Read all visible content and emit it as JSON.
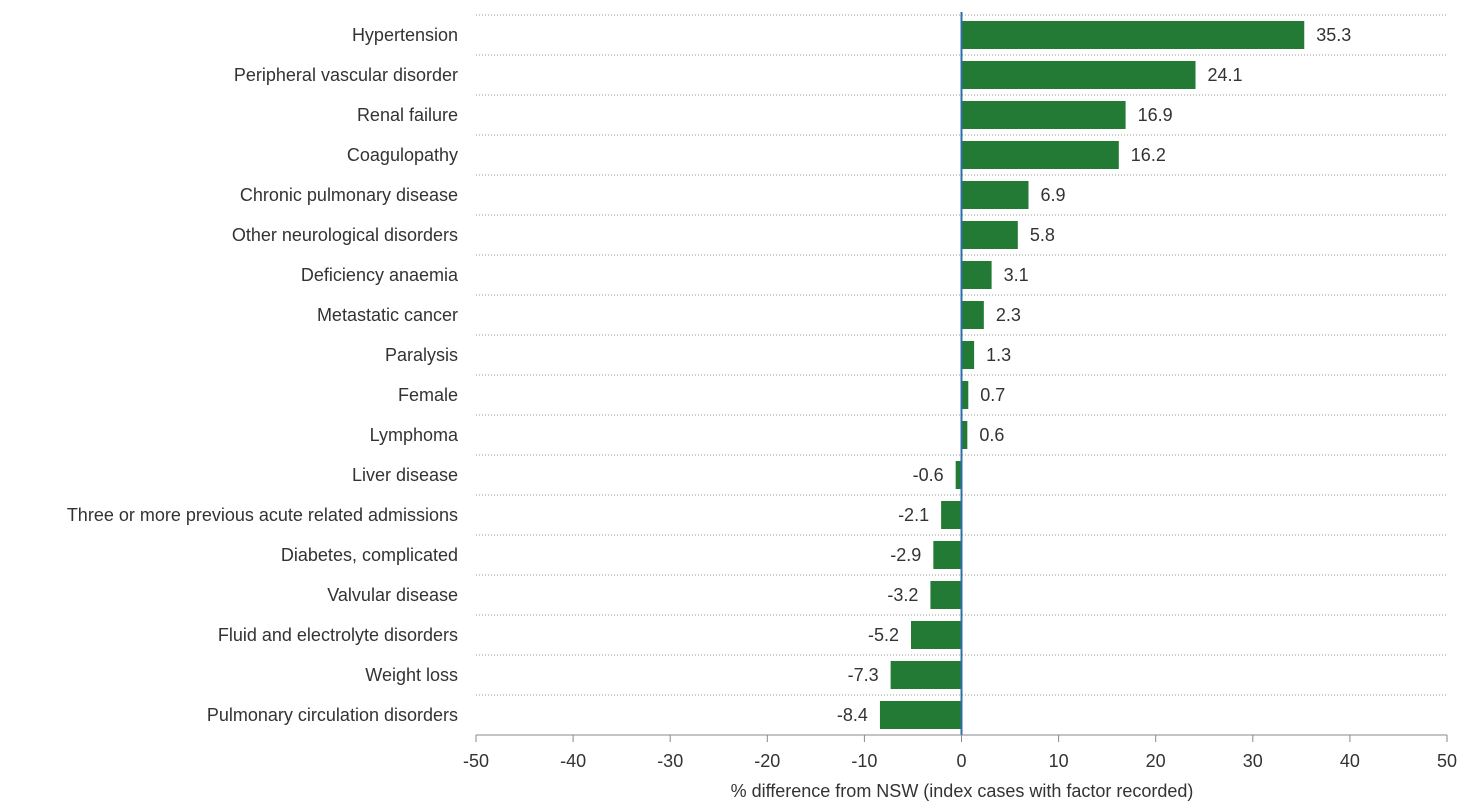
{
  "chart_data": {
    "type": "bar",
    "orientation": "horizontal",
    "title": "",
    "xlabel": "% difference from NSW (index cases with factor recorded)",
    "ylabel": "",
    "xlim": [
      -50,
      50
    ],
    "xticks": [
      -50,
      -40,
      -30,
      -20,
      -10,
      0,
      10,
      20,
      30,
      40,
      50
    ],
    "grid": "horizontal dotted lines between categories",
    "legend": "none",
    "categories": [
      "Hypertension",
      "Peripheral vascular disorder",
      "Renal failure",
      "Coagulopathy",
      "Chronic pulmonary disease",
      "Other neurological disorders",
      "Deficiency anaemia",
      "Metastatic cancer",
      "Paralysis",
      "Female",
      "Lymphoma",
      "Liver disease",
      "Three or more previous acute related admissions",
      "Diabetes, complicated",
      "Valvular disease",
      "Fluid and electrolyte disorders",
      "Weight loss",
      "Pulmonary circulation disorders"
    ],
    "values": [
      35.3,
      24.1,
      16.9,
      16.2,
      6.9,
      5.8,
      3.1,
      2.3,
      1.3,
      0.7,
      0.6,
      -0.6,
      -2.1,
      -2.9,
      -3.2,
      -5.2,
      -7.3,
      -8.4
    ],
    "value_labels": [
      "35.3",
      "24.1",
      "16.9",
      "16.2",
      "6.9",
      "5.8",
      "3.1",
      "2.3",
      "1.3",
      "0.7",
      "0.6",
      "-0.6",
      "-2.1",
      "-2.9",
      "-3.2",
      "-5.2",
      "-7.3",
      "-8.4"
    ],
    "colors": {
      "bar": "#237a34",
      "zero_line": "#2f6fa8",
      "grid": "#9a9a9a",
      "axis": "#888888",
      "text": "#333333"
    }
  }
}
